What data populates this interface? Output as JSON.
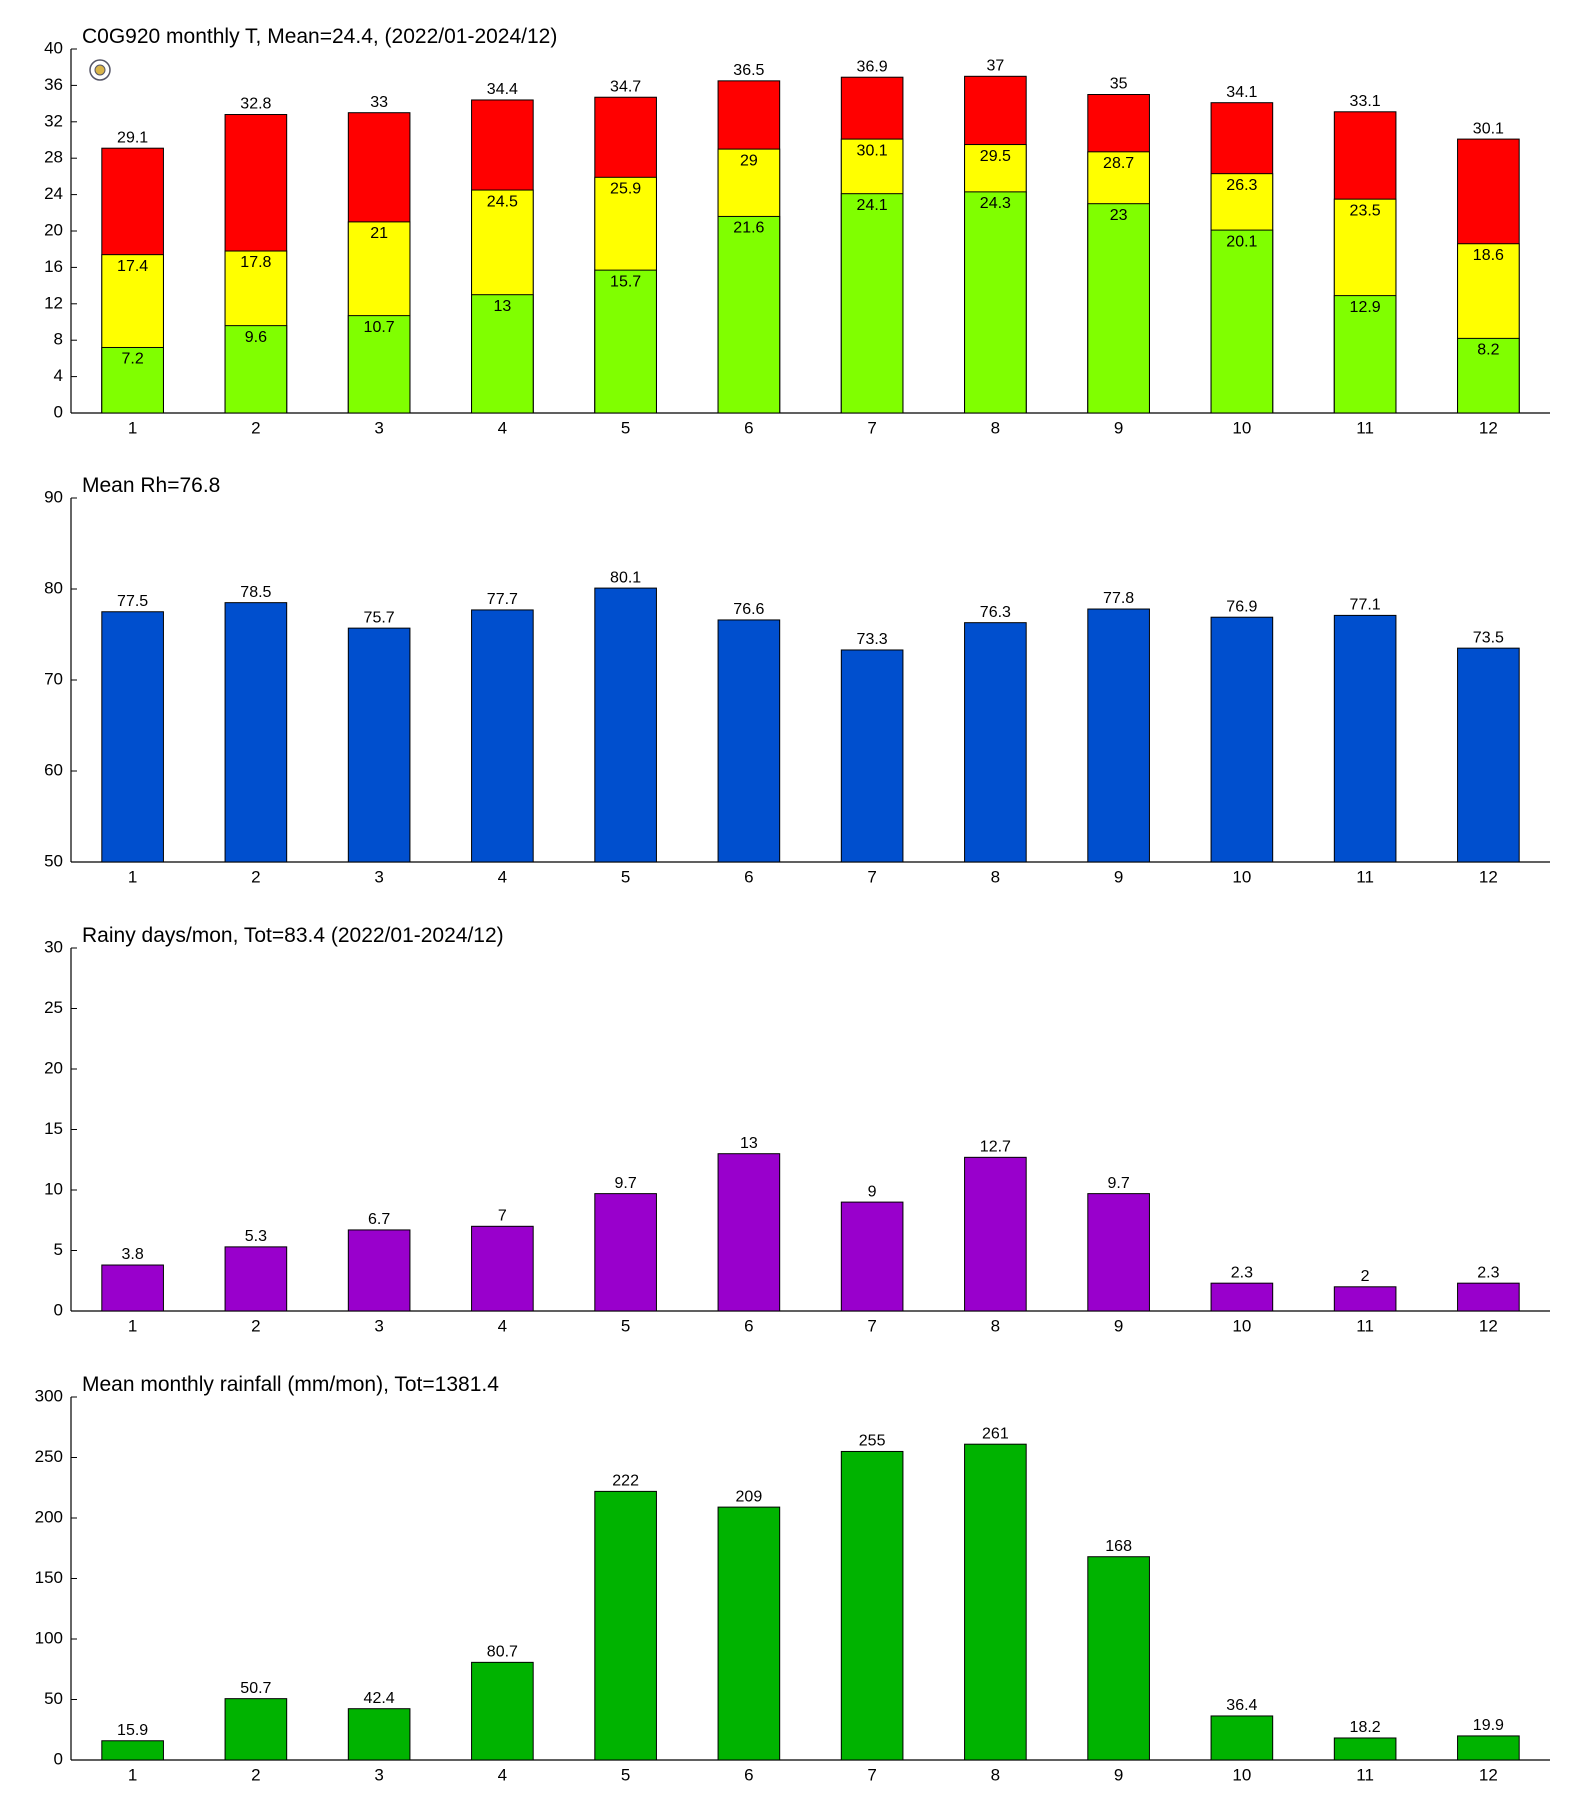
{
  "chart_data": [
    {
      "type": "bar",
      "title": "C0G920 monthly T, Mean=24.4, (2022/01-2024/12)",
      "categories": [
        1,
        2,
        3,
        4,
        5,
        6,
        7,
        8,
        9,
        10,
        11,
        12
      ],
      "series": [
        {
          "color": "#ff0000",
          "label_position": "above",
          "values": [
            29.1,
            32.8,
            33,
            34.4,
            34.7,
            36.5,
            36.9,
            37,
            35,
            34.1,
            33.1,
            30.1
          ]
        },
        {
          "color": "#ffff00",
          "label_position": "inside",
          "values": [
            17.4,
            17.8,
            21,
            24.5,
            25.9,
            29,
            30.1,
            29.5,
            28.7,
            26.3,
            23.5,
            18.6
          ]
        },
        {
          "color": "#80ff00",
          "label_position": "inside",
          "values": [
            7.2,
            9.6,
            10.7,
            13,
            15.7,
            21.6,
            24.1,
            24.3,
            23,
            20.1,
            12.9,
            8.2
          ]
        }
      ],
      "ylim": [
        0,
        40
      ],
      "yticks": [
        0,
        4,
        8,
        12,
        16,
        20,
        24,
        28,
        32,
        36,
        40
      ]
    },
    {
      "type": "bar",
      "title": "Mean Rh=76.8",
      "categories": [
        1,
        2,
        3,
        4,
        5,
        6,
        7,
        8,
        9,
        10,
        11,
        12
      ],
      "series": [
        {
          "color": "#004fce",
          "label_position": "above",
          "values": [
            77.5,
            78.5,
            75.7,
            77.7,
            80.1,
            76.6,
            73.3,
            76.3,
            77.8,
            76.9,
            77.1,
            73.5
          ]
        }
      ],
      "ylim": [
        50,
        90
      ],
      "yticks": [
        50,
        60,
        70,
        80,
        90
      ]
    },
    {
      "type": "bar",
      "title": "Rainy days/mon, Tot=83.4 (2022/01-2024/12)",
      "categories": [
        1,
        2,
        3,
        4,
        5,
        6,
        7,
        8,
        9,
        10,
        11,
        12
      ],
      "series": [
        {
          "color": "#9900cc",
          "label_position": "above",
          "values": [
            3.8,
            5.3,
            6.7,
            7,
            9.7,
            13,
            9,
            12.7,
            9.7,
            2.3,
            2,
            2.3
          ]
        }
      ],
      "ylim": [
        0,
        30
      ],
      "yticks": [
        0,
        5,
        10,
        15,
        20,
        25,
        30
      ]
    },
    {
      "type": "bar",
      "title": "Mean monthly rainfall (mm/mon), Tot=1381.4",
      "categories": [
        1,
        2,
        3,
        4,
        5,
        6,
        7,
        8,
        9,
        10,
        11,
        12
      ],
      "series": [
        {
          "color": "#00b300",
          "label_position": "above",
          "values": [
            15.9,
            50.7,
            42.4,
            80.7,
            222,
            209,
            255,
            261,
            168,
            36.4,
            18.2,
            19.9
          ]
        }
      ],
      "ylim": [
        0,
        300
      ],
      "yticks": [
        0,
        50,
        100,
        150,
        200,
        250,
        300
      ]
    }
  ]
}
